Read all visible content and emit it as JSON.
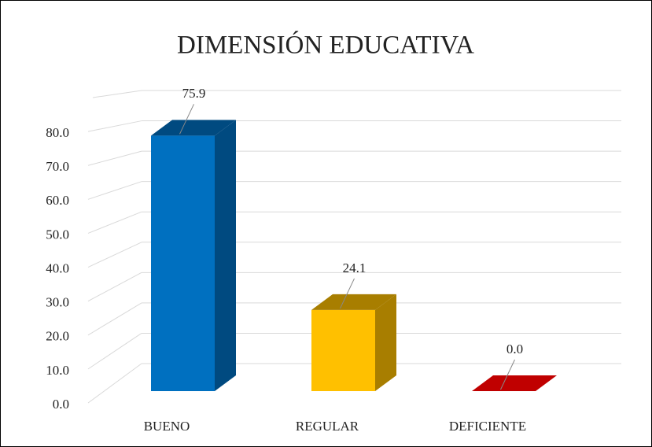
{
  "chart_data": {
    "type": "bar3d",
    "title": "DIMENSIÓN EDUCATIVA",
    "categories": [
      "BUENO",
      "REGULAR",
      "DEFICIENTE"
    ],
    "values": [
      75.9,
      24.1,
      0
    ],
    "value_labels": [
      "75.9",
      "24.1",
      "0.0"
    ],
    "colors": [
      "#0070c0",
      "#ffc000",
      "#c00000"
    ],
    "side_colors": [
      "#004a80",
      "#a87e00",
      "#8a0000"
    ],
    "ylim": [
      0,
      90
    ],
    "yticks": [
      {
        "value": 0,
        "label": "0.0"
      },
      {
        "value": 10,
        "label": "10.0"
      },
      {
        "value": 20,
        "label": "20.0"
      },
      {
        "value": 30,
        "label": "30.0"
      },
      {
        "value": 40,
        "label": "40.0"
      },
      {
        "value": 50,
        "label": "50.0"
      },
      {
        "value": 60,
        "label": "60.0"
      },
      {
        "value": 70,
        "label": "70.0"
      },
      {
        "value": 80,
        "label": "80.0"
      }
    ],
    "grid": true
  }
}
